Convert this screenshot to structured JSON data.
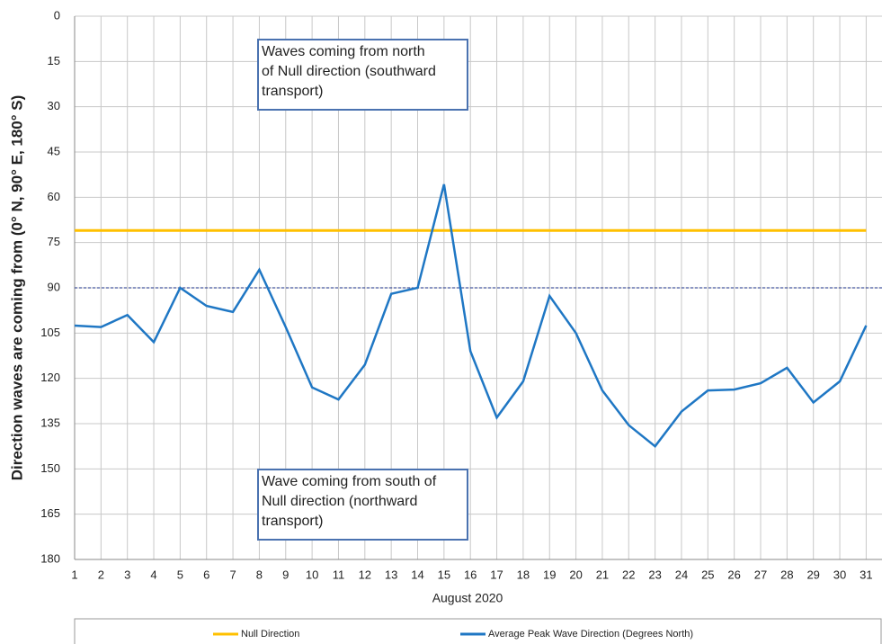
{
  "chart_data": {
    "type": "line",
    "y_axis_label": "Direction waves are coming from (0° N, 90° E, 180° S)",
    "x_axis_label": "August 2020",
    "x": [
      1,
      2,
      3,
      4,
      5,
      6,
      7,
      8,
      9,
      10,
      11,
      12,
      13,
      14,
      15,
      16,
      17,
      18,
      19,
      20,
      21,
      22,
      23,
      24,
      25,
      26,
      27,
      28,
      29,
      30,
      31
    ],
    "xlim": [
      1,
      31.6
    ],
    "xticks": [
      1,
      2,
      3,
      4,
      5,
      6,
      7,
      8,
      9,
      10,
      11,
      12,
      13,
      14,
      15,
      16,
      17,
      18,
      19,
      20,
      21,
      22,
      23,
      24,
      25,
      26,
      27,
      28,
      29,
      30,
      31
    ],
    "ylim": [
      0,
      180
    ],
    "y_inverted": true,
    "yticks": [
      0,
      15,
      30,
      45,
      60,
      75,
      90,
      105,
      120,
      135,
      150,
      165,
      180
    ],
    "grid": true,
    "series": [
      {
        "name": "Null Direction",
        "color": "#ffc000",
        "values": [
          71,
          71,
          71,
          71,
          71,
          71,
          71,
          71,
          71,
          71,
          71,
          71,
          71,
          71,
          71,
          71,
          71,
          71,
          71,
          71,
          71,
          71,
          71,
          71,
          71,
          71,
          71,
          71,
          71,
          71,
          71
        ]
      },
      {
        "name": "Average Peak Wave Direction (Degrees North)",
        "color": "#1f77c4",
        "values": [
          102.5,
          103,
          99,
          108,
          90,
          96,
          98,
          84,
          103,
          123,
          127,
          115.5,
          92,
          90,
          55.7,
          111,
          133,
          121,
          92.7,
          105,
          124,
          135.5,
          142.5,
          131,
          124,
          123.7,
          121.6,
          116.5,
          128,
          121,
          102.5
        ]
      }
    ],
    "reference_line": {
      "value": 90,
      "color": "#1a2f8a",
      "dashed": true
    },
    "legend_position": "bottom",
    "annotations": [
      {
        "lines": [
          "Waves coming from north",
          "of Null direction (southward",
          "transport)"
        ],
        "color": "#ff0000"
      },
      {
        "lines": [
          "Wave coming from south of",
          "Null direction (northward",
          "transport)"
        ],
        "color": "#1a1aff"
      }
    ]
  }
}
